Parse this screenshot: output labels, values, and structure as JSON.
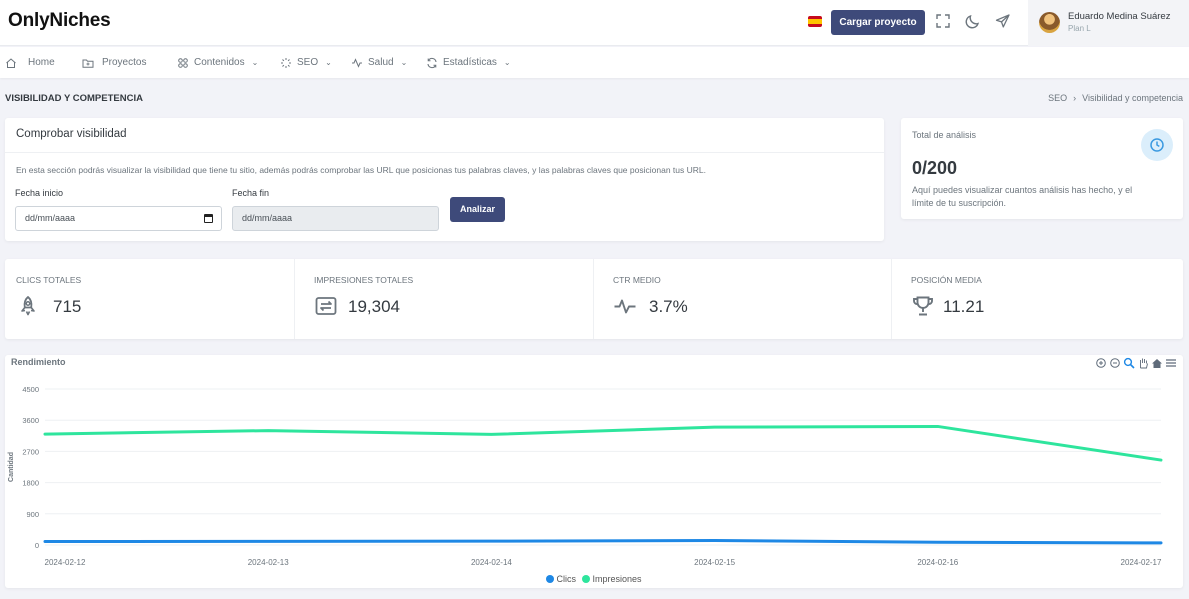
{
  "app": {
    "logo": "OnlyNiches"
  },
  "topbar": {
    "upload_label": "Cargar proyecto",
    "user": {
      "name": "Eduardo Medina Suárez",
      "plan": "Plan L"
    },
    "icons": [
      "spain-flag-icon",
      "fullscreen-icon",
      "moon-icon",
      "send-icon"
    ]
  },
  "nav": {
    "items": [
      {
        "label": "Home",
        "icon": "home-icon"
      },
      {
        "label": "Proyectos",
        "icon": "folder-icon"
      },
      {
        "label": "Contenidos",
        "icon": "grid-icon",
        "chevron": "⌄"
      },
      {
        "label": "SEO",
        "icon": "loader-icon",
        "chevron": "⌄"
      },
      {
        "label": "Salud",
        "icon": "activity-icon",
        "chevron": "⌄"
      },
      {
        "label": "Estadísticas",
        "icon": "refresh-icon",
        "chevron": "⌄"
      }
    ]
  },
  "page": {
    "title": "VISIBILIDAD Y COMPETENCIA",
    "breadcrumb": [
      "SEO",
      "Visibilidad y competencia"
    ],
    "breadcrumb_sep": "›"
  },
  "check": {
    "title": "Comprobar visibilidad",
    "description": "En esta sección podrás visualizar la visibilidad que tiene tu sitio, además podrás comprobar las URL que posicionas tus palabras claves, y las palabras claves que posicionan tus URL.",
    "start_label": "Fecha inicio",
    "start_placeholder": "dd/mm/aaaa",
    "end_label": "Fecha fin",
    "end_placeholder": "dd/mm/aaaa",
    "analyze_label": "Analizar"
  },
  "total": {
    "label": "Total de análisis",
    "value": "0/200",
    "description": "Aquí puedes visualizar cuantos análisis has hecho, y el límite de tu suscripción."
  },
  "stats": [
    {
      "label": "CLICS TOTALES",
      "value": "715",
      "icon": "rocket-icon"
    },
    {
      "label": "IMPRESIONES TOTALES",
      "value": "19,304",
      "icon": "exchange-icon"
    },
    {
      "label": "CTR MEDIO",
      "value": "3.7%",
      "icon": "pulse-icon"
    },
    {
      "label": "POSICIÓN MEDIA",
      "value": "11.21",
      "icon": "trophy-icon"
    }
  ],
  "chart_data": {
    "type": "line",
    "title": "Rendimiento",
    "ylabel": "Cantidad",
    "xlabel": "",
    "x": [
      "2024-02-12",
      "2024-02-13",
      "2024-02-14",
      "2024-02-15",
      "2024-02-16",
      "2024-02-17"
    ],
    "ylim": [
      0,
      4500
    ],
    "yticks": [
      "4500",
      "3600",
      "2700",
      "1800",
      "900",
      "0"
    ],
    "grid": true,
    "legend": "bottom-center",
    "series": [
      {
        "name": "Clics",
        "color": "#1e88e5",
        "values": [
          100,
          105,
          110,
          130,
          80,
          60
        ]
      },
      {
        "name": "Impresiones",
        "color": "#2ee59d",
        "values": [
          3200,
          3300,
          3190,
          3400,
          3420,
          2450
        ]
      }
    ],
    "toolbar_icons": [
      "zoom-in-icon",
      "zoom-out-icon",
      "magnifier-icon",
      "pan-hand-icon",
      "home-icon",
      "menu-icon"
    ]
  }
}
